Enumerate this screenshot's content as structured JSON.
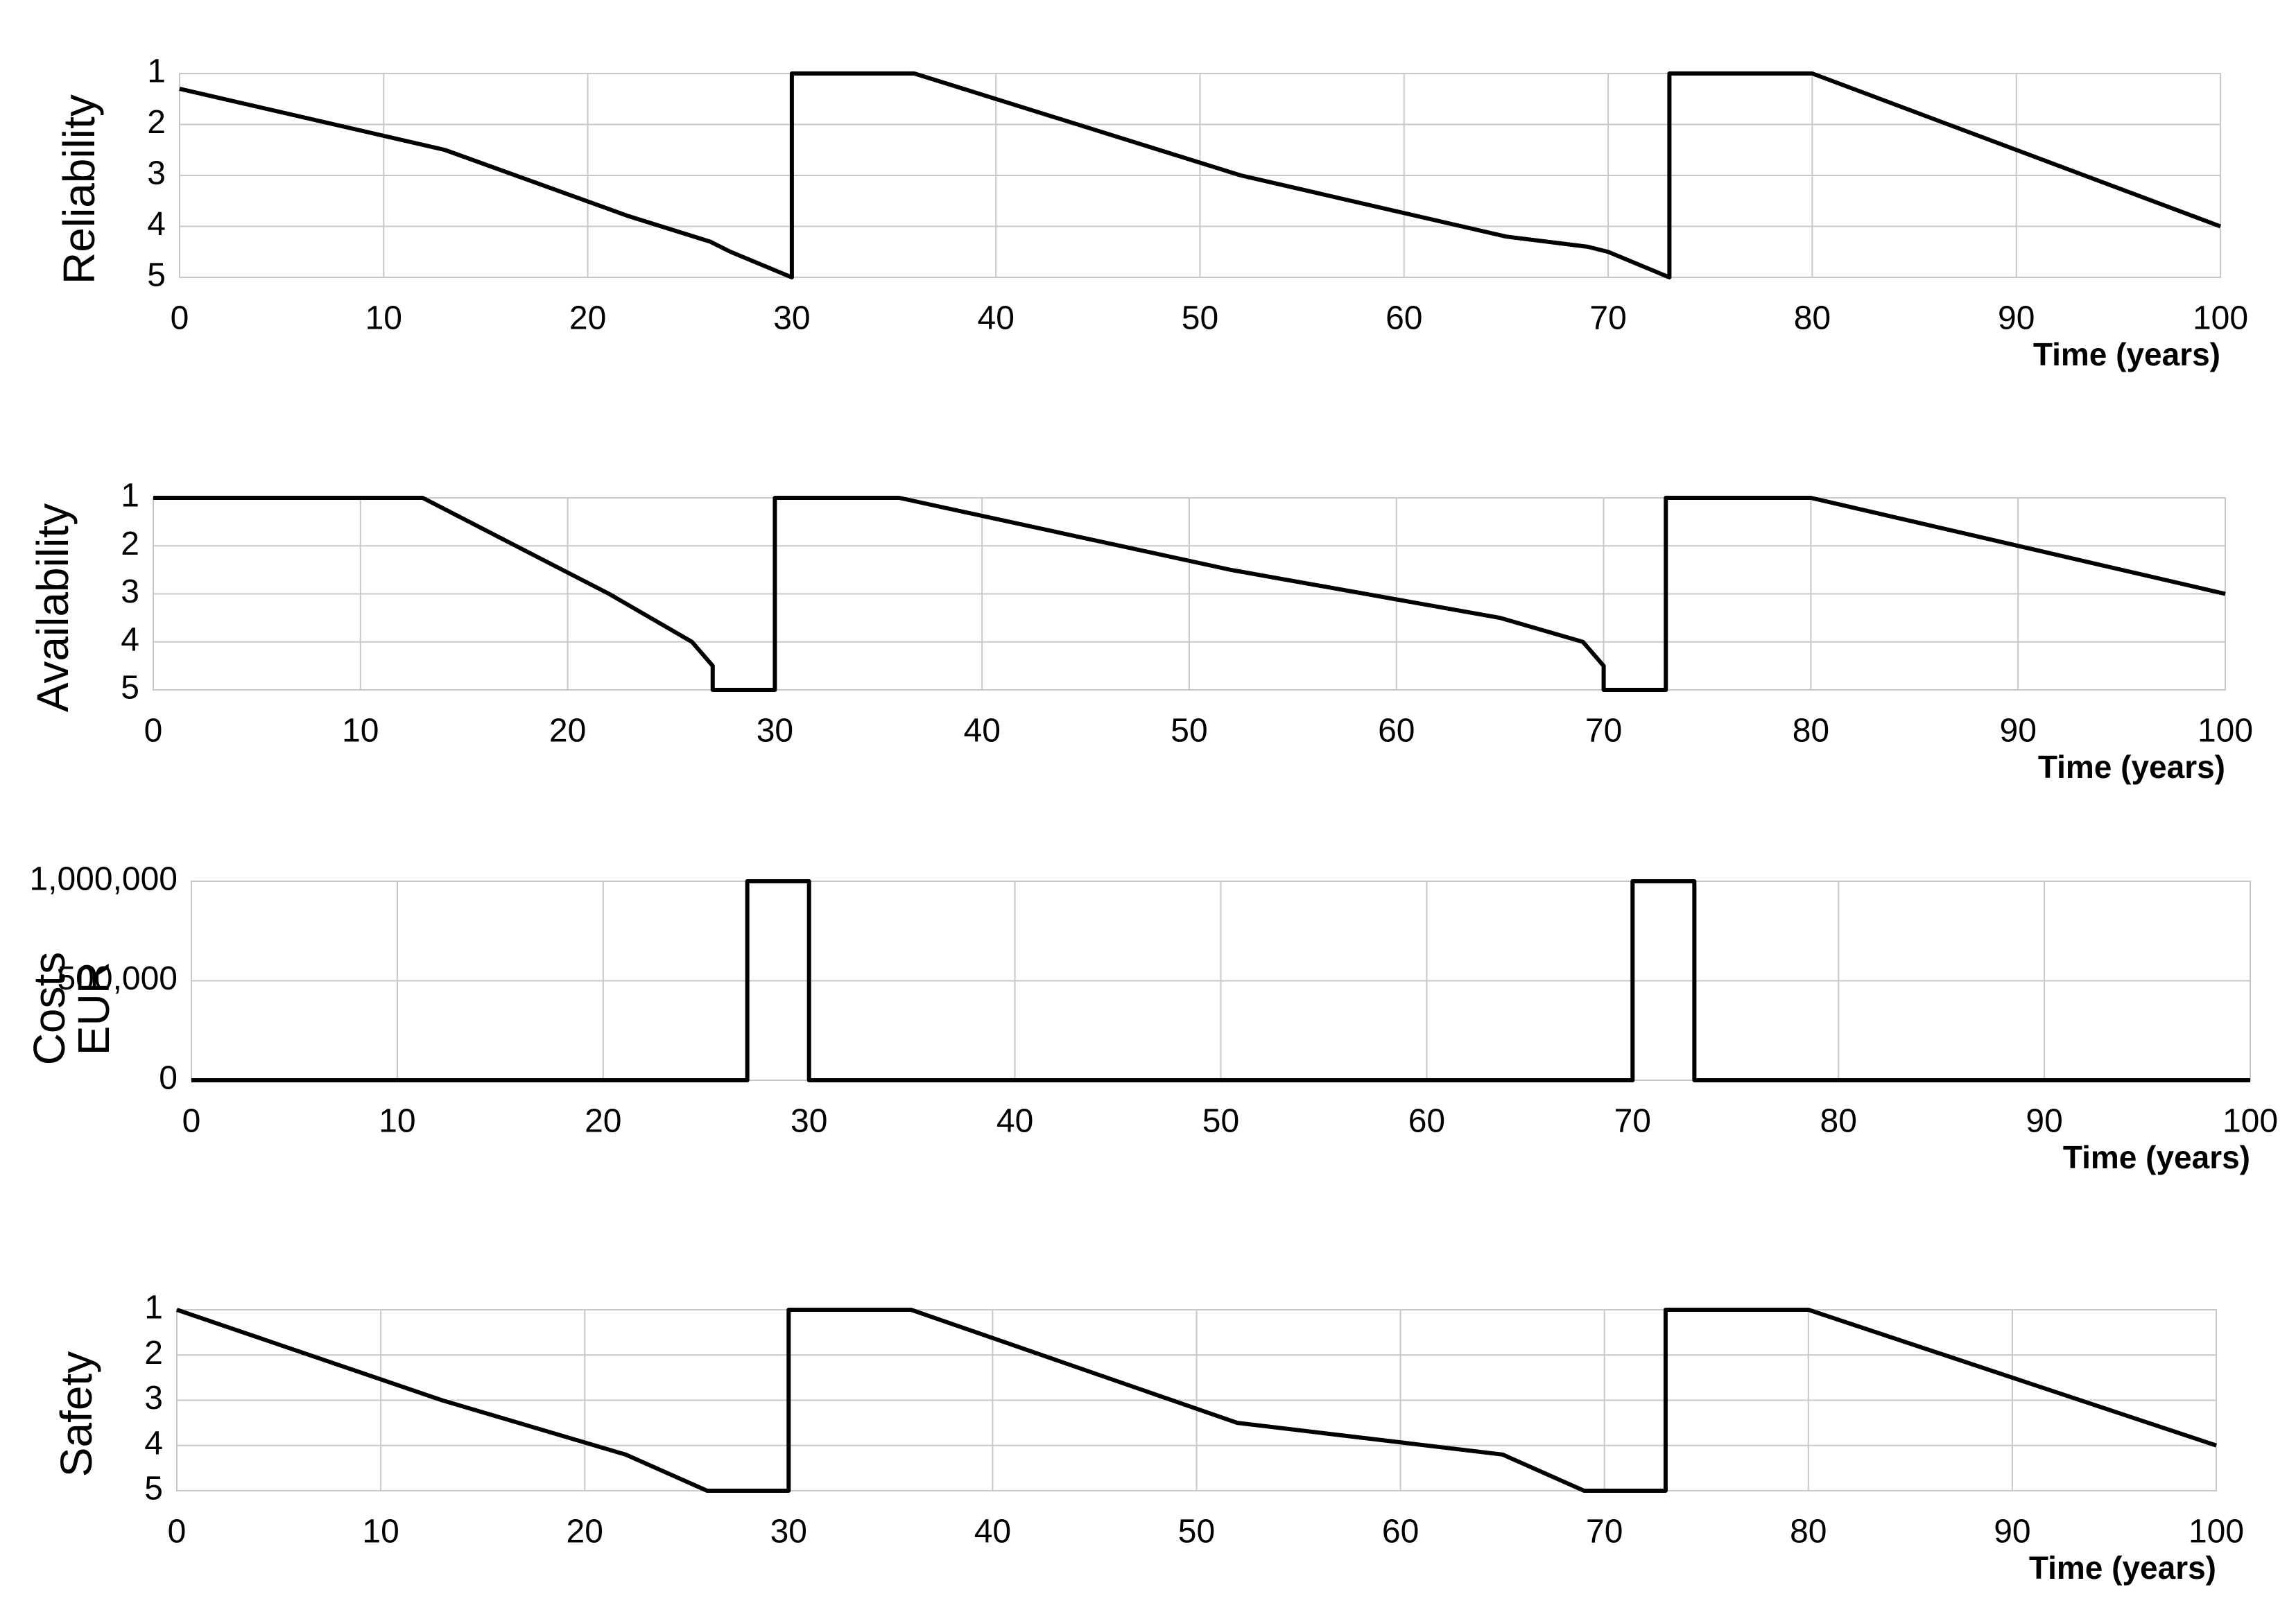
{
  "chart_data": [
    {
      "type": "line",
      "ylabel": "Reliability",
      "xlabel": "Time (years)",
      "xlim": [
        0,
        100
      ],
      "xticks": [
        0,
        10,
        20,
        30,
        40,
        50,
        60,
        70,
        80,
        90,
        100
      ],
      "ylim": [
        5,
        1
      ],
      "yticks": [
        1,
        2,
        3,
        4,
        5
      ],
      "grid": true,
      "series": [
        {
          "color": "#000000",
          "x": [
            0,
            13,
            22,
            26,
            27,
            30,
            30,
            36,
            52,
            65,
            69,
            70,
            73,
            73,
            80,
            100
          ],
          "values": [
            1.3,
            2.5,
            3.8,
            4.3,
            4.5,
            5,
            1,
            1,
            3,
            4.2,
            4.4,
            4.5,
            5,
            1,
            1,
            4
          ]
        }
      ]
    },
    {
      "type": "line",
      "ylabel": "Availability",
      "xlabel": "Time (years)",
      "xlim": [
        0,
        100
      ],
      "xticks": [
        0,
        10,
        20,
        30,
        40,
        50,
        60,
        70,
        80,
        90,
        100
      ],
      "ylim": [
        5,
        1
      ],
      "yticks": [
        1,
        2,
        3,
        4,
        5
      ],
      "grid": true,
      "series": [
        {
          "color": "#000000",
          "x": [
            0,
            13,
            22,
            26,
            27,
            27,
            30,
            30,
            36,
            52,
            65,
            69,
            70,
            70,
            73,
            73,
            80,
            100
          ],
          "values": [
            1,
            1,
            3,
            4,
            4.5,
            5,
            5,
            1,
            1,
            2.5,
            3.5,
            4,
            4.5,
            5,
            5,
            1,
            1,
            3
          ]
        }
      ]
    },
    {
      "type": "line",
      "ylabel": [
        "Costs",
        "EUR"
      ],
      "xlabel": "Time (years)",
      "xlim": [
        0,
        100
      ],
      "xticks": [
        0,
        10,
        20,
        30,
        40,
        50,
        60,
        70,
        80,
        90,
        100
      ],
      "ylim": [
        0,
        1000000
      ],
      "yticks": [
        0,
        {
          "value": 500000,
          "label": "500,000"
        },
        {
          "value": 1000000,
          "label": "1,000,000"
        }
      ],
      "grid": true,
      "series": [
        {
          "color": "#000000",
          "x": [
            0,
            27,
            27,
            30,
            30,
            70,
            70,
            73,
            73,
            100
          ],
          "values": [
            0,
            0,
            1000000,
            1000000,
            0,
            0,
            1000000,
            1000000,
            0,
            0
          ]
        }
      ]
    },
    {
      "type": "line",
      "ylabel": "Safety",
      "xlabel": "Time (years)",
      "xlim": [
        0,
        100
      ],
      "xticks": [
        0,
        10,
        20,
        30,
        40,
        50,
        60,
        70,
        80,
        90,
        100
      ],
      "ylim": [
        5,
        1
      ],
      "yticks": [
        1,
        2,
        3,
        4,
        5
      ],
      "grid": true,
      "series": [
        {
          "color": "#000000",
          "x": [
            0,
            13,
            22,
            26,
            30,
            30,
            36,
            52,
            65,
            69,
            73,
            73,
            80,
            100
          ],
          "values": [
            1,
            3,
            4.2,
            5,
            5,
            1,
            1,
            3.5,
            4.2,
            5,
            5,
            1,
            1,
            4
          ]
        }
      ]
    }
  ]
}
